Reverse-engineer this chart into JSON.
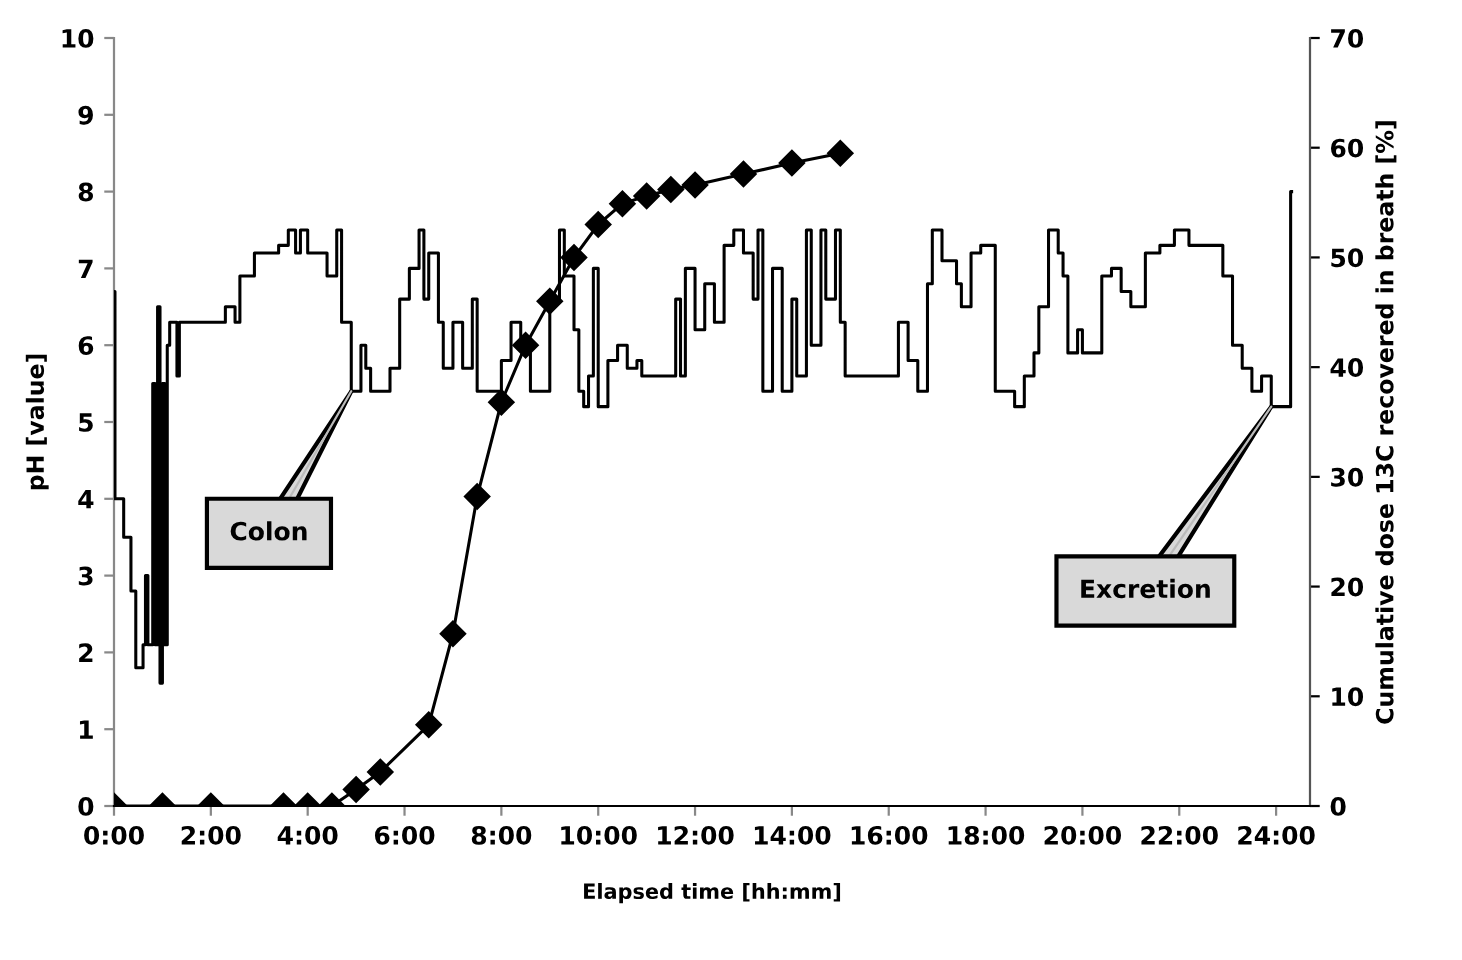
{
  "chart_data": {
    "type": "line",
    "xlabel": "Elapsed time [hh:mm]",
    "ylabel": "pH [value]",
    "y2label": "Cumulative dose 13C recovered in breath [%]",
    "xlim": [
      0,
      24.7
    ],
    "xticks": [
      {
        "value": 0,
        "label": "0:00"
      },
      {
        "value": 2,
        "label": "2:00"
      },
      {
        "value": 4,
        "label": "4:00"
      },
      {
        "value": 6,
        "label": "6:00"
      },
      {
        "value": 8,
        "label": "8:00"
      },
      {
        "value": 10,
        "label": "10:00"
      },
      {
        "value": 12,
        "label": "12:00"
      },
      {
        "value": 14,
        "label": "14:00"
      },
      {
        "value": 16,
        "label": "16:00"
      },
      {
        "value": 18,
        "label": "18:00"
      },
      {
        "value": 20,
        "label": "20:00"
      },
      {
        "value": 22,
        "label": "22:00"
      },
      {
        "value": 24,
        "label": "24:00"
      }
    ],
    "ylim": [
      0,
      10
    ],
    "yticks": [
      0,
      1,
      2,
      3,
      4,
      5,
      6,
      7,
      8,
      9,
      10
    ],
    "y2lim": [
      0,
      70
    ],
    "y2ticks": [
      0,
      10,
      20,
      30,
      40,
      50,
      60,
      70
    ],
    "grid": false,
    "series": [
      {
        "type": "step",
        "color": "#000000",
        "marker": "none",
        "x": [
          0.0,
          0.02,
          0.2,
          0.35,
          0.45,
          0.6,
          0.65,
          0.7,
          0.8,
          0.85,
          0.9,
          0.95,
          1.0,
          1.05,
          1.1,
          1.15,
          1.3,
          1.35,
          2.3,
          2.5,
          2.6,
          2.9,
          3.4,
          3.6,
          3.75,
          3.85,
          4.0,
          4.4,
          4.6,
          4.7,
          4.9,
          5.1,
          5.2,
          5.3,
          5.7,
          5.9,
          6.1,
          6.3,
          6.4,
          6.5,
          6.7,
          6.8,
          7.0,
          7.2,
          7.4,
          7.5,
          7.8,
          8.0,
          8.2,
          8.4,
          8.6,
          8.9,
          9.0,
          9.2,
          9.3,
          9.5,
          9.6,
          9.7,
          9.8,
          9.9,
          10.0,
          10.2,
          10.4,
          10.6,
          10.8,
          10.9,
          11.6,
          11.7,
          11.8,
          12.0,
          12.2,
          12.4,
          12.6,
          12.8,
          13.0,
          13.2,
          13.3,
          13.4,
          13.6,
          13.8,
          14.0,
          14.1,
          14.3,
          14.4,
          14.6,
          14.7,
          14.9,
          15.0,
          15.1,
          16.0,
          16.2,
          16.4,
          16.6,
          16.8,
          16.9,
          17.1,
          17.4,
          17.5,
          17.7,
          17.9,
          18.2,
          18.6,
          18.8,
          19.0,
          19.1,
          19.3,
          19.5,
          19.6,
          19.7,
          19.9,
          20.0,
          20.4,
          20.6,
          20.8,
          21.0,
          21.3,
          21.6,
          21.9,
          22.2,
          22.9,
          23.1,
          23.3,
          23.5,
          23.7,
          23.9,
          24.3,
          24.32
        ],
        "values": [
          6.7,
          4.0,
          3.5,
          2.8,
          1.8,
          2.1,
          3.0,
          2.1,
          5.5,
          2.1,
          6.5,
          1.6,
          5.5,
          2.1,
          6.0,
          6.3,
          5.6,
          6.3,
          6.5,
          6.3,
          6.9,
          7.2,
          7.3,
          7.5,
          7.2,
          7.5,
          7.2,
          6.9,
          7.5,
          6.3,
          5.4,
          6.0,
          5.7,
          5.4,
          5.7,
          6.6,
          7.0,
          7.5,
          6.6,
          7.2,
          6.3,
          5.7,
          6.3,
          5.7,
          6.6,
          5.4,
          5.4,
          5.8,
          6.3,
          6.0,
          5.4,
          5.4,
          6.6,
          7.5,
          6.9,
          6.2,
          5.4,
          5.2,
          5.6,
          7.0,
          5.2,
          5.8,
          6.0,
          5.7,
          5.8,
          5.6,
          6.6,
          5.6,
          7.0,
          6.2,
          6.8,
          6.3,
          7.3,
          7.5,
          7.2,
          6.6,
          7.5,
          5.4,
          7.0,
          5.4,
          6.6,
          5.6,
          7.5,
          6.0,
          7.5,
          6.6,
          7.5,
          6.3,
          5.6,
          5.6,
          6.3,
          5.8,
          5.4,
          6.8,
          7.5,
          7.1,
          6.8,
          6.5,
          7.2,
          7.3,
          5.4,
          5.2,
          5.6,
          5.9,
          6.5,
          7.5,
          7.2,
          6.9,
          5.9,
          6.2,
          5.9,
          6.9,
          7.0,
          6.7,
          6.5,
          7.2,
          7.3,
          7.5,
          7.3,
          6.9,
          6.0,
          5.7,
          5.4,
          5.6,
          5.2,
          8.0,
          8.0
        ]
      },
      {
        "axis": "y2",
        "color": "#000000",
        "marker": "diamond",
        "x": [
          0,
          1,
          2,
          3.5,
          4,
          4.5,
          5,
          5.5,
          6.5,
          7,
          7.5,
          8,
          8.5,
          9,
          9.5,
          10,
          10.5,
          11,
          11.5,
          12,
          13,
          14,
          15
        ],
        "values": [
          0,
          0,
          0,
          0,
          0,
          0,
          1.5,
          3.1,
          7.4,
          15.7,
          28.2,
          36.8,
          42,
          46,
          50,
          53,
          54.9,
          55.6,
          56.2,
          56.6,
          57.6,
          58.6,
          59.5
        ]
      }
    ],
    "annotations": [
      {
        "text": "Colon",
        "x": 4.9,
        "y": 5.4
      },
      {
        "text": "Excretion",
        "x": 23.9,
        "y": 5.2
      }
    ]
  }
}
